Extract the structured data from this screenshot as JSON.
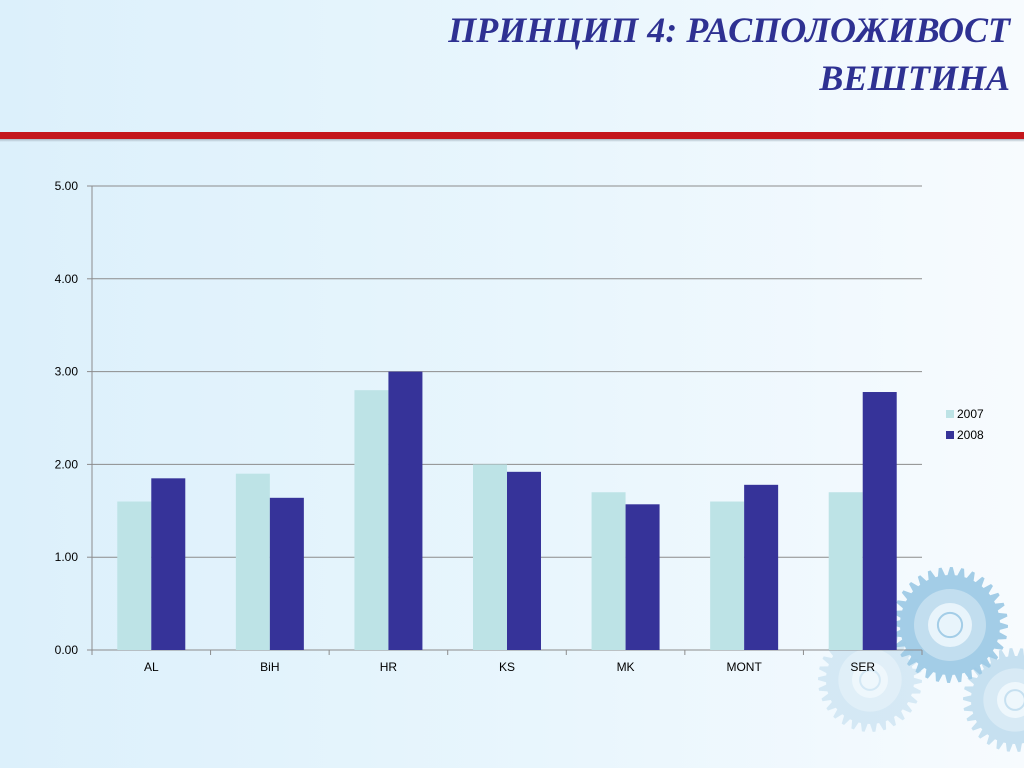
{
  "slide": {
    "title_line1": "ПРИНЦИП 4: РАСПОЛОЖИВОСТ",
    "title_line2": "ВЕШТИНА"
  },
  "colors": {
    "title": "#2e3192",
    "rule": "#c4161c",
    "series_2007": "#bde3e6",
    "series_2008": "#363399",
    "gear": "#9fcbe6"
  },
  "decoration": {
    "icon": "gear-icon"
  },
  "chart_data": {
    "type": "bar",
    "categories": [
      "AL",
      "BiH",
      "HR",
      "KS",
      "MK",
      "MONT",
      "SER"
    ],
    "series": [
      {
        "name": "2007",
        "values": [
          1.6,
          1.9,
          2.8,
          2.0,
          1.7,
          1.6,
          1.7
        ]
      },
      {
        "name": "2008",
        "values": [
          1.85,
          1.64,
          3.0,
          1.92,
          1.57,
          1.78,
          2.78
        ]
      }
    ],
    "yticks": [
      "0.00",
      "1.00",
      "2.00",
      "3.00",
      "4.00",
      "5.00"
    ],
    "ylim": [
      0,
      5
    ],
    "grid": true,
    "legend": "right",
    "title": "",
    "xlabel": "",
    "ylabel": ""
  }
}
